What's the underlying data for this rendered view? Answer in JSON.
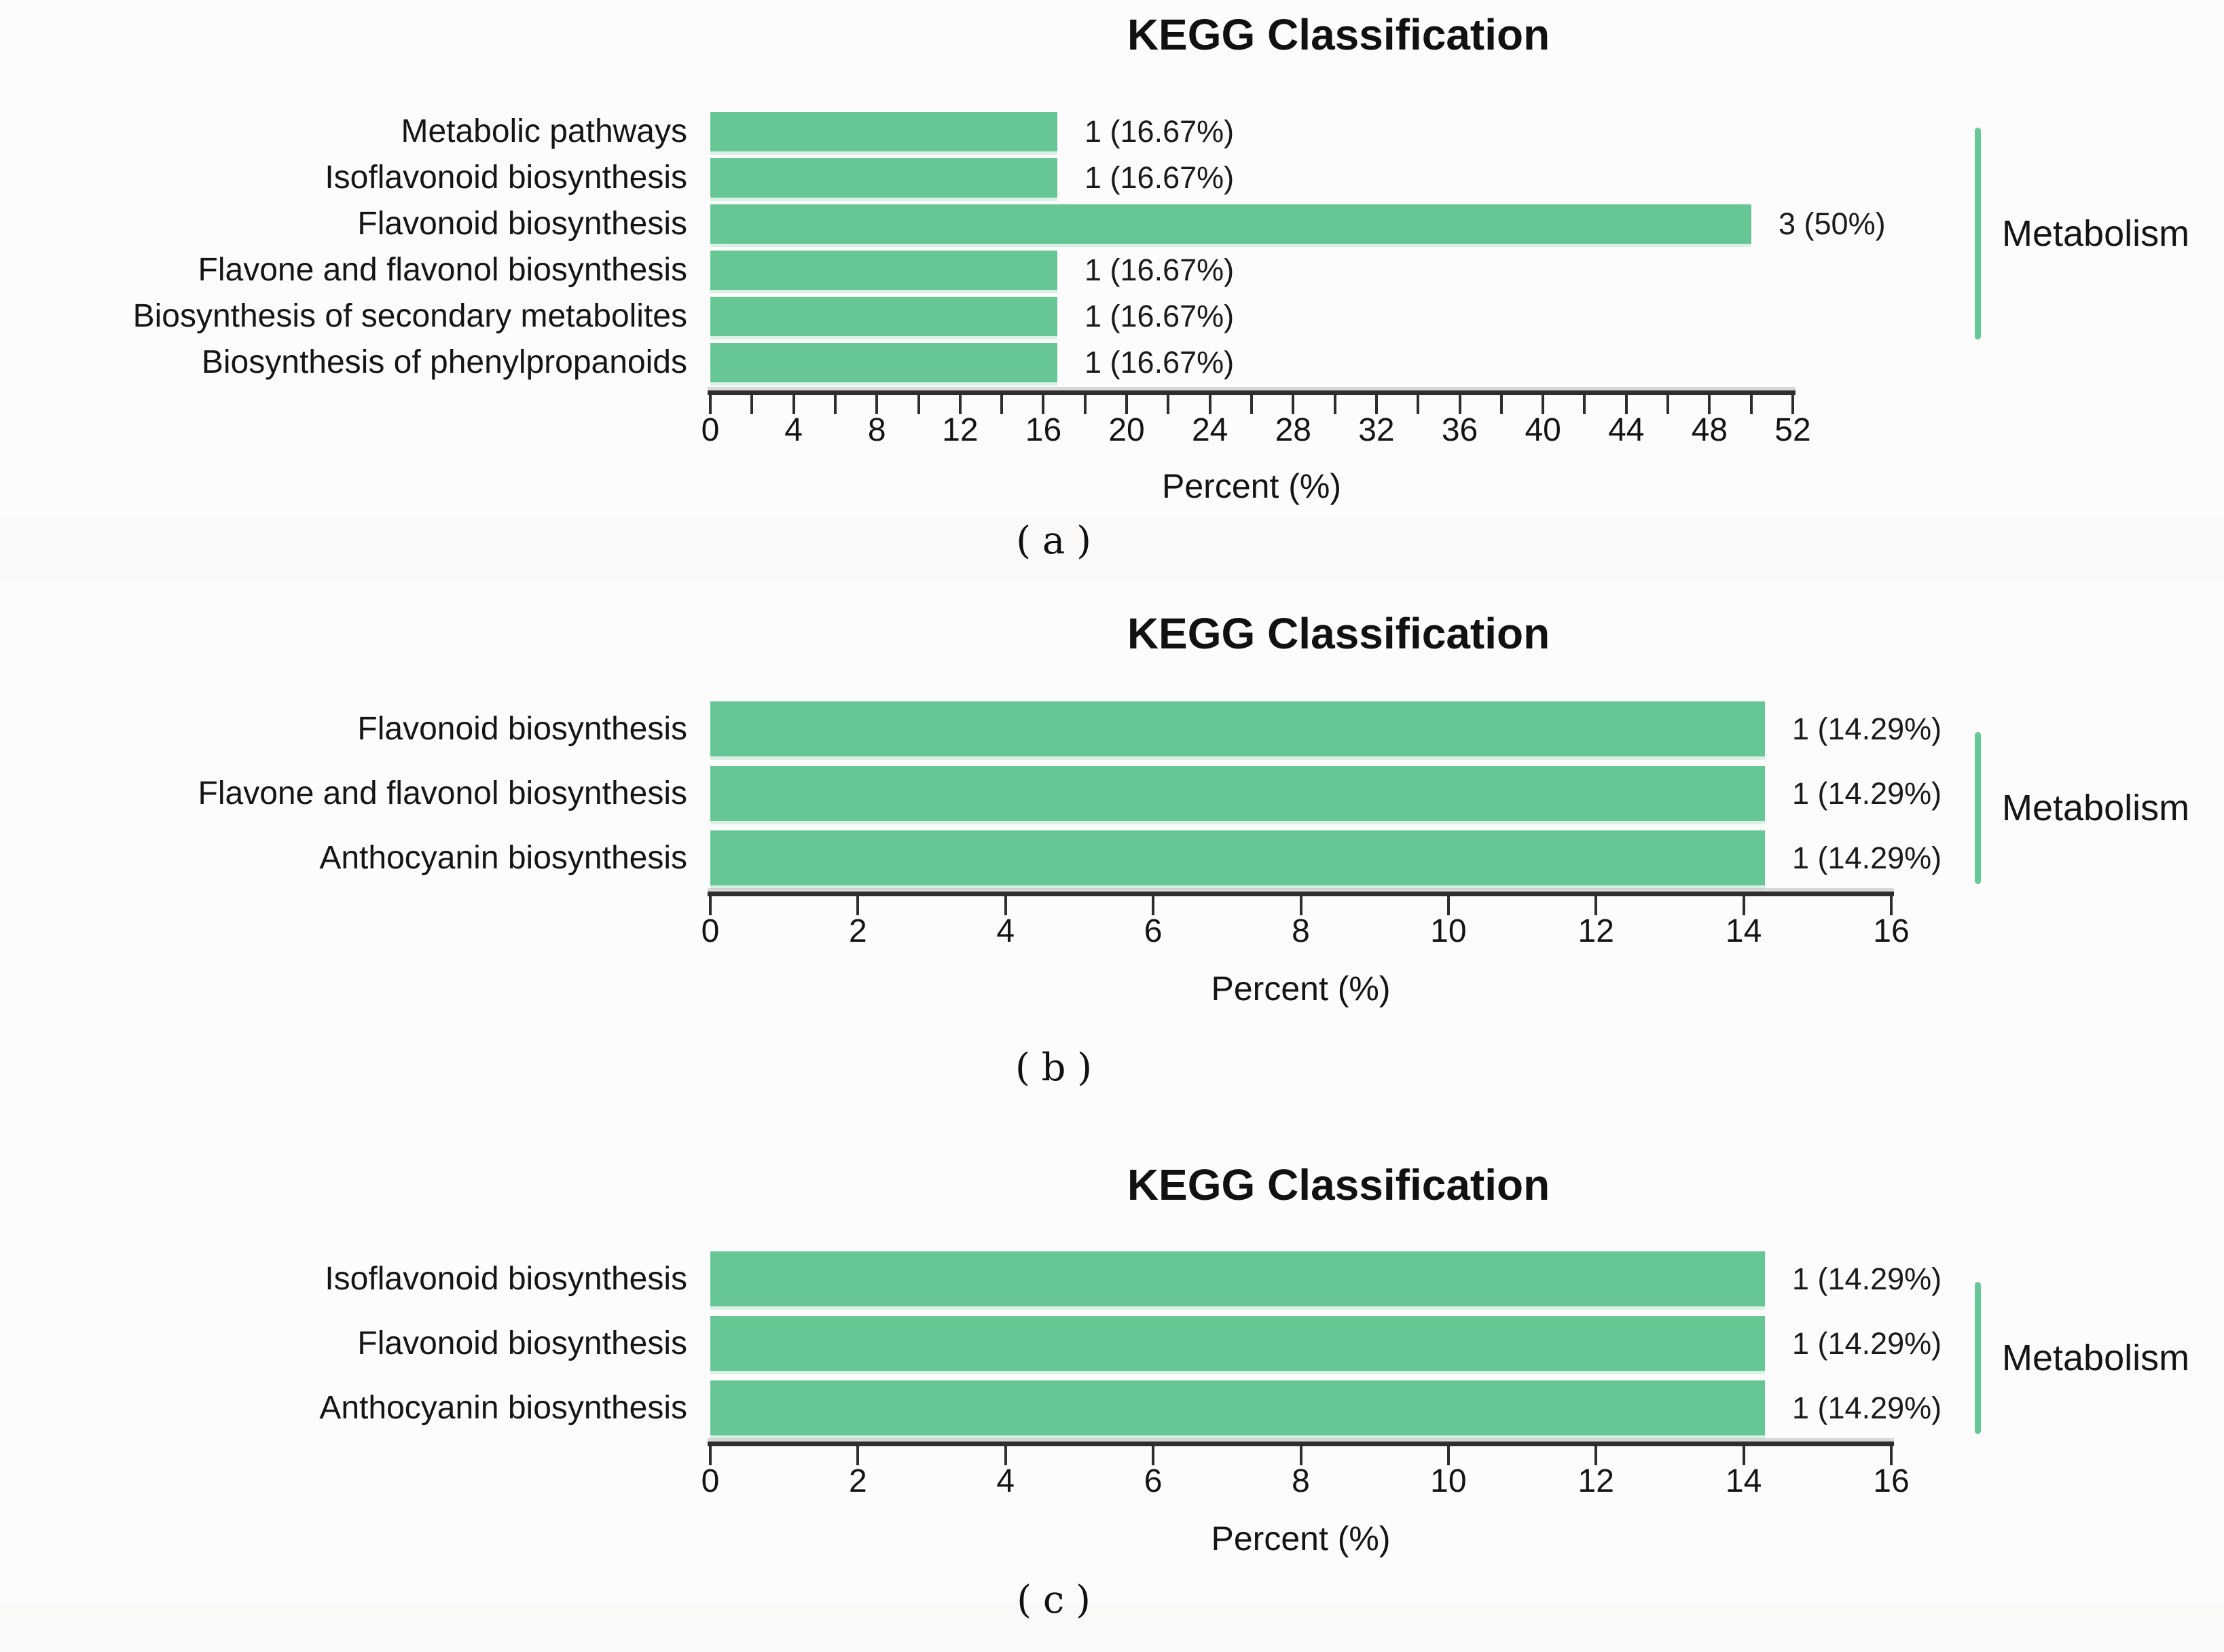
{
  "figure": {
    "background_color": "#fdfcfc",
    "bar_color": "#66c795",
    "bracket_color": "#67c897",
    "axis_color": "#2e2e2e",
    "text_color": "#161616"
  },
  "chart_data": [
    {
      "id": "a",
      "type": "bar",
      "orientation": "horizontal",
      "title": "KEGG Classification",
      "xlabel": "Percent (%)",
      "caption": "(a)",
      "group_label": "Metabolism",
      "categories": [
        "Metabolic pathways",
        "Isoflavonoid biosynthesis",
        "Flavonoid biosynthesis",
        "Flavone and flavonol biosynthesis",
        "Biosynthesis of secondary metabolites",
        "Biosynthesis of phenylpropanoids"
      ],
      "counts": [
        1,
        1,
        3,
        1,
        1,
        1
      ],
      "values": [
        16.67,
        16.67,
        50,
        16.67,
        16.67,
        16.67
      ],
      "value_labels": [
        "1 (16.67%)",
        "1 (16.67%)",
        "3 (50%)",
        "1 (16.67%)",
        "1 (16.67%)",
        "1 (16.67%)"
      ],
      "xlim": [
        0,
        52
      ],
      "x_ticks": [
        0,
        2,
        4,
        6,
        8,
        10,
        12,
        14,
        16,
        18,
        20,
        22,
        24,
        26,
        28,
        30,
        32,
        34,
        36,
        38,
        40,
        42,
        44,
        46,
        48,
        50,
        52
      ],
      "x_tick_labels": [
        0,
        4,
        8,
        12,
        16,
        20,
        24,
        28,
        32,
        36,
        40,
        44,
        48,
        52
      ],
      "grid": "off",
      "legend_position": "none"
    },
    {
      "id": "b",
      "type": "bar",
      "orientation": "horizontal",
      "title": "KEGG Classification",
      "xlabel": "Percent (%)",
      "caption": "(b)",
      "group_label": "Metabolism",
      "categories": [
        "Flavonoid biosynthesis",
        "Flavone and flavonol biosynthesis",
        "Anthocyanin biosynthesis"
      ],
      "counts": [
        1,
        1,
        1
      ],
      "values": [
        14.29,
        14.29,
        14.29
      ],
      "value_labels": [
        "1 (14.29%)",
        "1 (14.29%)",
        "1 (14.29%)"
      ],
      "xlim": [
        0,
        16
      ],
      "x_ticks": [
        0,
        2,
        4,
        6,
        8,
        10,
        12,
        14,
        16
      ],
      "x_tick_labels": [
        0,
        2,
        4,
        6,
        8,
        10,
        12,
        14,
        16
      ],
      "grid": "off",
      "legend_position": "none"
    },
    {
      "id": "c",
      "type": "bar",
      "orientation": "horizontal",
      "title": "KEGG Classification",
      "xlabel": "Percent (%)",
      "caption": "(c)",
      "group_label": "Metabolism",
      "categories": [
        "Isoflavonoid biosynthesis",
        "Flavonoid biosynthesis",
        "Anthocyanin biosynthesis"
      ],
      "counts": [
        1,
        1,
        1
      ],
      "values": [
        14.29,
        14.29,
        14.29
      ],
      "value_labels": [
        "1 (14.29%)",
        "1 (14.29%)",
        "1 (14.29%)"
      ],
      "xlim": [
        0,
        16
      ],
      "x_ticks": [
        0,
        2,
        4,
        6,
        8,
        10,
        12,
        14,
        16
      ],
      "x_tick_labels": [
        0,
        2,
        4,
        6,
        8,
        10,
        12,
        14,
        16
      ],
      "grid": "off",
      "legend_position": "none"
    }
  ]
}
